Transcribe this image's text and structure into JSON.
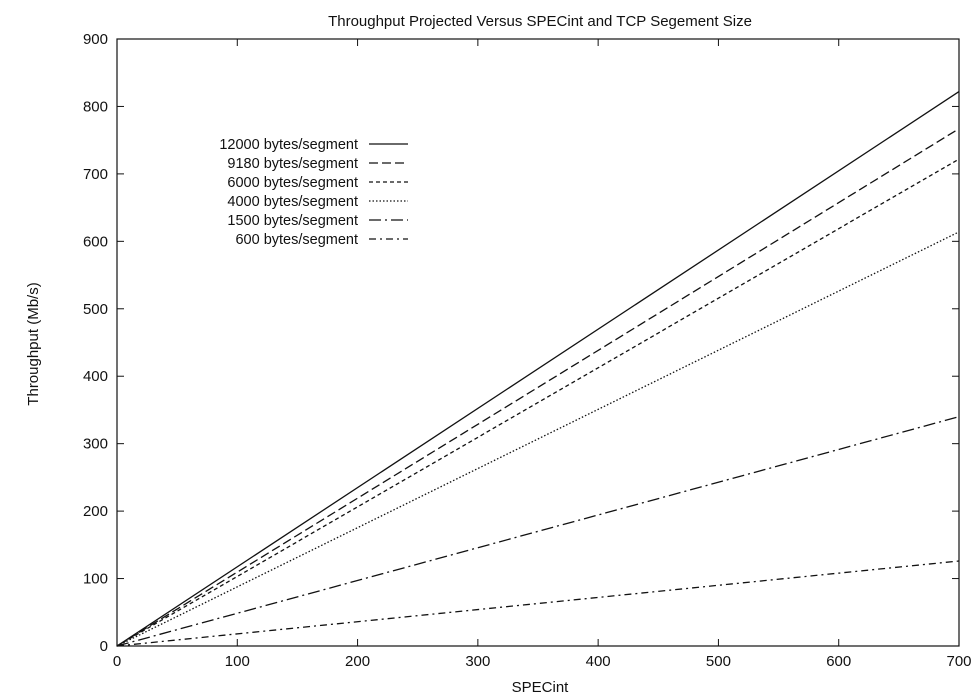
{
  "chart_data": {
    "type": "line",
    "title": "Throughput Projected Versus SPECint and TCP Segement Size",
    "xlabel": "SPECint",
    "ylabel": "Throughput (Mb/s)",
    "xlim": [
      0,
      700
    ],
    "ylim": [
      0,
      900
    ],
    "xticks": [
      0,
      100,
      200,
      300,
      400,
      500,
      600,
      700
    ],
    "yticks": [
      0,
      100,
      200,
      300,
      400,
      500,
      600,
      700,
      800,
      900
    ],
    "grid": false,
    "legend_position": "top-left",
    "series": [
      {
        "name": "12000 bytes/segment",
        "dash": "solid",
        "x": [
          0,
          700
        ],
        "y": [
          0,
          822
        ]
      },
      {
        "name": "9180 bytes/segment",
        "dash": "dashed",
        "x": [
          0,
          700
        ],
        "y": [
          0,
          767
        ]
      },
      {
        "name": "6000 bytes/segment",
        "dash": "short-dashed",
        "x": [
          0,
          700
        ],
        "y": [
          0,
          722
        ]
      },
      {
        "name": "4000 bytes/segment",
        "dash": "dotted",
        "x": [
          0,
          700
        ],
        "y": [
          0,
          614
        ]
      },
      {
        "name": "1500 bytes/segment",
        "dash": "dash-dot",
        "x": [
          0,
          700
        ],
        "y": [
          0,
          340
        ]
      },
      {
        "name": "600 bytes/segment",
        "dash": "dash-dot-fine",
        "x": [
          0,
          700
        ],
        "y": [
          0,
          126
        ]
      }
    ]
  }
}
